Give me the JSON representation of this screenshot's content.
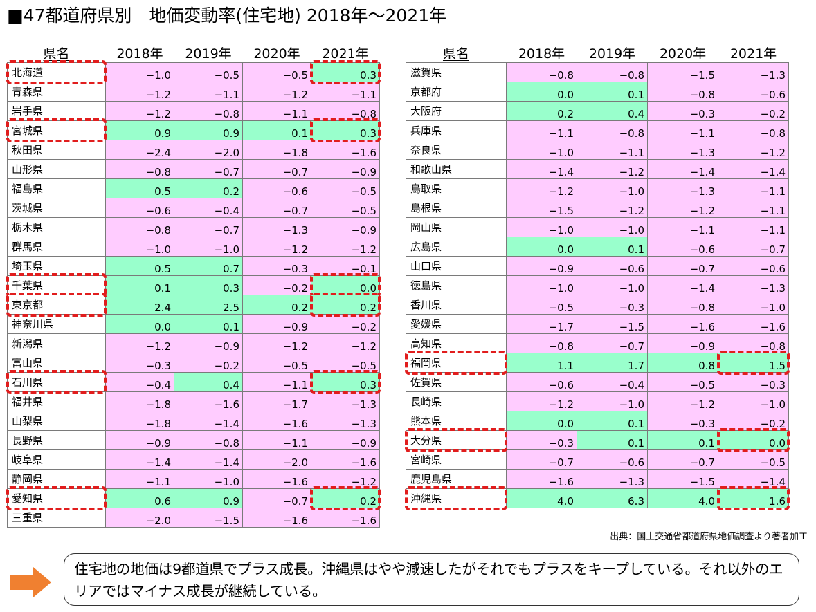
{
  "title": "■47都道府県別　地価変動率(住宅地) 2018年～2021年",
  "headers": {
    "name": "県名",
    "years": [
      "2018年",
      "2019年",
      "2020年",
      "2021年"
    ]
  },
  "colors": {
    "positive": "#99ffcc",
    "negative": "#ffccff",
    "highlight": "#e11d1d",
    "arrow": "#f08030"
  },
  "left_rows": [
    {
      "name": "北海道",
      "values": [
        "-1.0",
        "-0.5",
        "-0.5",
        "0.3"
      ],
      "highlight": true
    },
    {
      "name": "青森県",
      "values": [
        "-1.2",
        "-1.1",
        "-1.2",
        "-1.1"
      ],
      "highlight": false
    },
    {
      "name": "岩手県",
      "values": [
        "-1.2",
        "-0.8",
        "-1.1",
        "-0.8"
      ],
      "highlight": false
    },
    {
      "name": "宮城県",
      "values": [
        "0.9",
        "0.9",
        "0.1",
        "0.3"
      ],
      "highlight": true
    },
    {
      "name": "秋田県",
      "values": [
        "-2.4",
        "-2.0",
        "-1.8",
        "-1.6"
      ],
      "highlight": false
    },
    {
      "name": "山形県",
      "values": [
        "-0.8",
        "-0.7",
        "-0.7",
        "-0.9"
      ],
      "highlight": false
    },
    {
      "name": "福島県",
      "values": [
        "0.5",
        "0.2",
        "-0.6",
        "-0.5"
      ],
      "highlight": false
    },
    {
      "name": "茨城県",
      "values": [
        "-0.6",
        "-0.4",
        "-0.7",
        "-0.5"
      ],
      "highlight": false
    },
    {
      "name": "栃木県",
      "values": [
        "-0.8",
        "-0.7",
        "-1.3",
        "-0.9"
      ],
      "highlight": false
    },
    {
      "name": "群馬県",
      "values": [
        "-1.0",
        "-1.0",
        "-1.2",
        "-1.2"
      ],
      "highlight": false
    },
    {
      "name": "埼玉県",
      "values": [
        "0.5",
        "0.7",
        "-0.3",
        "-0.1"
      ],
      "highlight": false
    },
    {
      "name": "千葉県",
      "values": [
        "0.1",
        "0.3",
        "-0.2",
        "0.0"
      ],
      "highlight": true
    },
    {
      "name": "東京都",
      "values": [
        "2.4",
        "2.5",
        "0.2",
        "0.2"
      ],
      "highlight": true
    },
    {
      "name": "神奈川県",
      "values": [
        "0.0",
        "0.1",
        "-0.9",
        "-0.2"
      ],
      "highlight": false
    },
    {
      "name": "新潟県",
      "values": [
        "-1.2",
        "-0.9",
        "-1.2",
        "-1.2"
      ],
      "highlight": false
    },
    {
      "name": "富山県",
      "values": [
        "-0.3",
        "-0.2",
        "-0.5",
        "-0.5"
      ],
      "highlight": false
    },
    {
      "name": "石川県",
      "values": [
        "-0.4",
        "0.4",
        "-1.1",
        "0.3"
      ],
      "highlight": true
    },
    {
      "name": "福井県",
      "values": [
        "-1.8",
        "-1.6",
        "-1.7",
        "-1.3"
      ],
      "highlight": false
    },
    {
      "name": "山梨県",
      "values": [
        "-1.8",
        "-1.4",
        "-1.6",
        "-1.3"
      ],
      "highlight": false
    },
    {
      "name": "長野県",
      "values": [
        "-0.9",
        "-0.8",
        "-1.1",
        "-0.9"
      ],
      "highlight": false
    },
    {
      "name": "岐阜県",
      "values": [
        "-1.4",
        "-1.4",
        "-2.0",
        "-1.6"
      ],
      "highlight": false
    },
    {
      "name": "静岡県",
      "values": [
        "-1.1",
        "-1.0",
        "-1.6",
        "-1.2"
      ],
      "highlight": false
    },
    {
      "name": "愛知県",
      "values": [
        "0.6",
        "0.9",
        "-0.7",
        "0.2"
      ],
      "highlight": true
    },
    {
      "name": "三重県",
      "values": [
        "-2.0",
        "-1.5",
        "-1.6",
        "-1.6"
      ],
      "highlight": false
    }
  ],
  "right_rows": [
    {
      "name": "滋賀県",
      "values": [
        "-0.8",
        "-0.8",
        "-1.5",
        "-1.3"
      ],
      "highlight": false
    },
    {
      "name": "京都府",
      "values": [
        "0.0",
        "0.1",
        "-0.8",
        "-0.6"
      ],
      "highlight": false
    },
    {
      "name": "大阪府",
      "values": [
        "0.2",
        "0.4",
        "-0.3",
        "-0.2"
      ],
      "highlight": false
    },
    {
      "name": "兵庫県",
      "values": [
        "-1.1",
        "-0.8",
        "-1.1",
        "-0.8"
      ],
      "highlight": false
    },
    {
      "name": "奈良県",
      "values": [
        "-1.0",
        "-1.1",
        "-1.3",
        "-1.2"
      ],
      "highlight": false
    },
    {
      "name": "和歌山県",
      "values": [
        "-1.4",
        "-1.2",
        "-1.4",
        "-1.4"
      ],
      "highlight": false
    },
    {
      "name": "鳥取県",
      "values": [
        "-1.2",
        "-1.0",
        "-1.3",
        "-1.1"
      ],
      "highlight": false
    },
    {
      "name": "島根県",
      "values": [
        "-1.5",
        "-1.2",
        "-1.2",
        "-1.1"
      ],
      "highlight": false
    },
    {
      "name": "岡山県",
      "values": [
        "-1.0",
        "-1.0",
        "-1.1",
        "-1.1"
      ],
      "highlight": false
    },
    {
      "name": "広島県",
      "values": [
        "0.0",
        "0.1",
        "-0.6",
        "-0.7"
      ],
      "highlight": false
    },
    {
      "name": "山口県",
      "values": [
        "-0.9",
        "-0.6",
        "-0.7",
        "-0.6"
      ],
      "highlight": false
    },
    {
      "name": "徳島県",
      "values": [
        "-1.0",
        "-1.0",
        "-1.4",
        "-1.3"
      ],
      "highlight": false
    },
    {
      "name": "香川県",
      "values": [
        "-0.5",
        "-0.3",
        "-0.8",
        "-1.0"
      ],
      "highlight": false
    },
    {
      "name": "愛媛県",
      "values": [
        "-1.7",
        "-1.5",
        "-1.6",
        "-1.6"
      ],
      "highlight": false
    },
    {
      "name": "高知県",
      "values": [
        "-0.8",
        "-0.7",
        "-0.9",
        "-0.8"
      ],
      "highlight": false
    },
    {
      "name": "福岡県",
      "values": [
        "1.1",
        "1.7",
        "0.8",
        "1.5"
      ],
      "highlight": true
    },
    {
      "name": "佐賀県",
      "values": [
        "-0.6",
        "-0.4",
        "-0.5",
        "-0.3"
      ],
      "highlight": false
    },
    {
      "name": "長崎県",
      "values": [
        "-1.2",
        "-1.0",
        "-1.2",
        "-1.0"
      ],
      "highlight": false
    },
    {
      "name": "熊本県",
      "values": [
        "0.0",
        "0.1",
        "-0.3",
        "-0.2"
      ],
      "highlight": false
    },
    {
      "name": "大分県",
      "values": [
        "-0.3",
        "0.1",
        "0.1",
        "0.0"
      ],
      "highlight": true
    },
    {
      "name": "宮崎県",
      "values": [
        "-0.7",
        "-0.6",
        "-0.7",
        "-0.5"
      ],
      "highlight": false
    },
    {
      "name": "鹿児島県",
      "values": [
        "-1.6",
        "-1.3",
        "-1.5",
        "-1.4"
      ],
      "highlight": false
    },
    {
      "name": "沖縄県",
      "values": [
        "4.0",
        "6.3",
        "4.0",
        "1.6"
      ],
      "highlight": true
    }
  ],
  "source": "出典：国土交通省都道府県地価調査より著者加工",
  "comment": "住宅地の地価は9都道県でプラス成長。沖縄県はやや減速したがそれでもプラスをキープしている。それ以外のエリアではマイナス成長が継続している。"
}
